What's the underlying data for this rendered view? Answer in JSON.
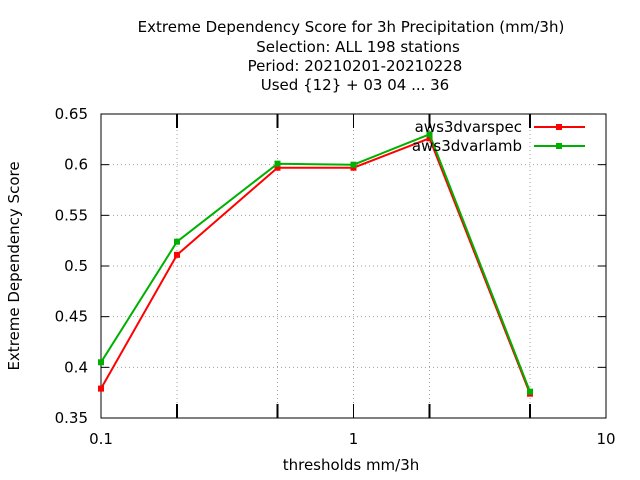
{
  "chart_data": {
    "type": "line",
    "title_lines": [
      "Extreme Dependency Score  for 3h Precipitation (mm/3h)",
      "Selection: ALL    198 stations",
      "Period: 20210201-20210228",
      "Used {12} + 03 04 ... 36"
    ],
    "xlabel": "thresholds mm/3h",
    "ylabel": "Extreme Dependency Score",
    "x_scale": "log",
    "xlim": [
      0.1,
      10
    ],
    "ylim": [
      0.35,
      0.65
    ],
    "x_ticks": [
      0.1,
      1,
      10
    ],
    "x_tick_labels": [
      "0.1",
      "1",
      "10"
    ],
    "x_minor_ticks": [
      0.2,
      0.5,
      2,
      5
    ],
    "y_ticks": [
      0.35,
      0.4,
      0.45,
      0.5,
      0.55,
      0.6,
      0.65
    ],
    "y_tick_labels": [
      "0.35",
      "0.4",
      "0.45",
      "0.5",
      "0.55",
      "0.6",
      "0.65"
    ],
    "grid": true,
    "legend_position": "top-right",
    "x": [
      0.1,
      0.2,
      0.5,
      1,
      2,
      5
    ],
    "series": [
      {
        "name": "aws3dvarspec",
        "color": "#ff0000",
        "values": [
          0.379,
          0.511,
          0.597,
          0.597,
          0.626,
          0.374
        ]
      },
      {
        "name": "aws3dvarlamb",
        "color": "#00b000",
        "values": [
          0.405,
          0.524,
          0.601,
          0.6,
          0.63,
          0.376
        ]
      }
    ]
  }
}
